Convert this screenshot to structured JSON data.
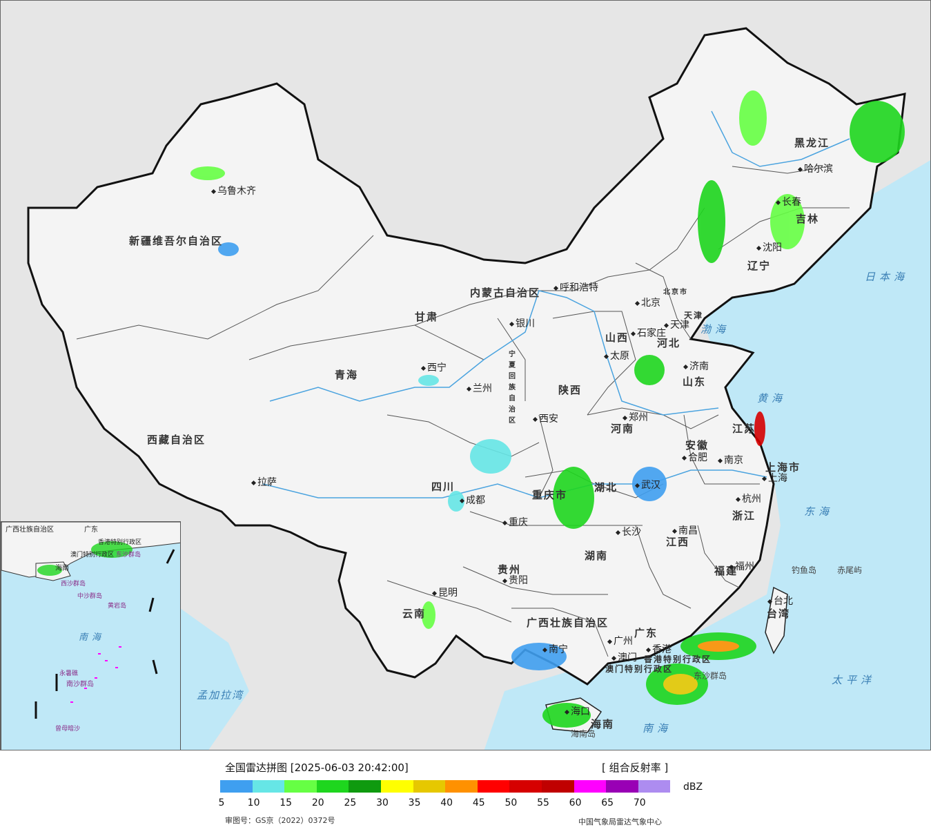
{
  "map": {
    "colors": {
      "sea": "#bfe8f7",
      "land": "#f4f4f4",
      "foreign": "#e6e6e6",
      "border": "#111111",
      "river": "#4aa3df"
    },
    "provinces": [
      "新疆维吾尔自治区",
      "西藏自治区",
      "青海",
      "甘肃",
      "内蒙古自治区",
      "黑龙江",
      "吉林",
      "辽宁",
      "河北",
      "山西",
      "陕西",
      "宁夏回族自治区",
      "河南",
      "山东",
      "江苏",
      "安徽",
      "湖北",
      "四川",
      "重庆市",
      "湖南",
      "江西",
      "浙江",
      "福建",
      "贵州",
      "云南",
      "广西壮族自治区",
      "广东",
      "台湾",
      "海南",
      "上海市",
      "天津",
      "北京",
      "香港特别行政区",
      "澳门特别行政区"
    ],
    "cities": [
      "乌鲁木齐",
      "拉萨",
      "西宁",
      "兰州",
      "银川",
      "呼和浩特",
      "北京",
      "天津",
      "石家庄",
      "太原",
      "济南",
      "郑州",
      "西安",
      "合肥",
      "南京",
      "上海",
      "杭州",
      "武汉",
      "成都",
      "重庆",
      "长沙",
      "南昌",
      "福州",
      "台北",
      "贵阳",
      "昆明",
      "南宁",
      "广州",
      "香港",
      "澳门",
      "海口",
      "哈尔滨",
      "长春",
      "沈阳"
    ],
    "seas": [
      "渤海",
      "黄海",
      "东海",
      "南海",
      "日本海",
      "太平洋",
      "孟加拉湾"
    ],
    "islands": [
      "钓鱼岛",
      "赤尾屿",
      "东沙群岛",
      "海南岛"
    ],
    "inset_labels": [
      "广西壮族自治区",
      "广东",
      "海南",
      "香港特别行政区",
      "澳门特别行政区",
      "东沙群岛",
      "西沙群岛",
      "中沙群岛",
      "黄岩岛",
      "南海",
      "永暑礁",
      "南沙群岛",
      "曾母暗沙"
    ],
    "poi": {
      "beijing_city": "北京市"
    }
  },
  "legend": {
    "title": "全国雷达拼图 [2025-06-03 20:42:00]",
    "product": "[ 组合反射率 ]",
    "unit": "dBZ",
    "ticks": [
      "5",
      "10",
      "15",
      "20",
      "25",
      "30",
      "35",
      "40",
      "45",
      "50",
      "55",
      "60",
      "65",
      "70"
    ],
    "colors": [
      "#3f9ff0",
      "#66e6e6",
      "#66ff44",
      "#1ed61e",
      "#0f9a0f",
      "#ffff00",
      "#e6c800",
      "#ff9100",
      "#ff0000",
      "#d60000",
      "#c00000",
      "#ff00ff",
      "#9900b5",
      "#ad8cf0"
    ],
    "review_number": "审图号：GS京（2022）0372号",
    "source": "中国气象局雷达气象中心"
  }
}
